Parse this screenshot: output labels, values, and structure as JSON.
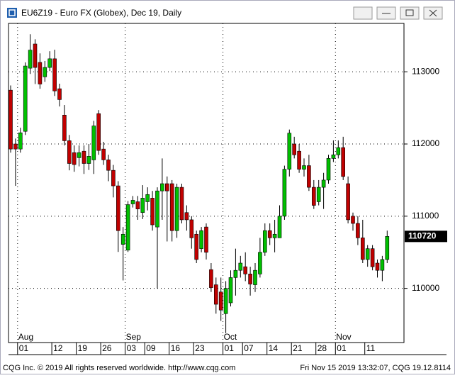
{
  "window_title": "EU6Z19 - Euro FX (Globex), Dec 19, Daily",
  "footer": {
    "left": "CQG Inc. © 2019 All rights reserved worldwide. http://www.cqg.com",
    "right": "Fri Nov 15 2019 13:32:07, CQG 19.12.8114"
  },
  "chart_data": {
    "type": "candlestick",
    "categories": [
      null,
      null,
      "01",
      null,
      null,
      null,
      null,
      null,
      null,
      "12",
      null,
      null,
      null,
      null,
      "19",
      null,
      null,
      null,
      null,
      "26",
      null,
      null,
      null,
      null,
      "03",
      null,
      null,
      null,
      "09",
      null,
      null,
      null,
      null,
      "16",
      null,
      null,
      null,
      null,
      "23",
      null,
      null,
      null,
      null,
      null,
      "01",
      null,
      null,
      null,
      "07",
      null,
      null,
      null,
      null,
      "14",
      null,
      null,
      null,
      null,
      "21",
      null,
      null,
      null,
      null,
      "28",
      null,
      null,
      null,
      "01",
      null,
      null,
      null,
      null,
      null,
      "11",
      null,
      null,
      null,
      null
    ],
    "months": [
      null,
      null,
      "Aug",
      null,
      null,
      null,
      null,
      null,
      null,
      null,
      null,
      null,
      null,
      null,
      null,
      null,
      null,
      null,
      null,
      null,
      null,
      null,
      null,
      null,
      "Sep",
      null,
      null,
      null,
      null,
      null,
      null,
      null,
      null,
      null,
      null,
      null,
      null,
      null,
      null,
      null,
      null,
      null,
      null,
      null,
      "Oct",
      null,
      null,
      null,
      null,
      null,
      null,
      null,
      null,
      null,
      null,
      null,
      null,
      null,
      null,
      null,
      null,
      null,
      null,
      null,
      null,
      null,
      null,
      "Nov",
      null,
      null,
      null,
      null,
      null,
      null,
      null,
      null,
      null,
      null
    ],
    "open": [
      112745,
      112000,
      111930,
      112175,
      113050,
      113385,
      113130,
      112930,
      113060,
      113180,
      112765,
      112400,
      112045,
      111880,
      111810,
      111900,
      111730,
      111780,
      112420,
      111930,
      111780,
      111635,
      111420,
      110610,
      110530,
      111170,
      111200,
      111050,
      111200,
      111250,
      110850,
      111350,
      111450,
      111450,
      110800,
      111400,
      111050,
      110950,
      110750,
      110550,
      110850,
      110260,
      110050,
      109950,
      109650,
      109800,
      110150,
      110250,
      110300,
      110200,
      110050,
      110200,
      110500,
      110800,
      110700,
      110700,
      111000,
      111650,
      112000,
      111900,
      111650,
      111700,
      111400,
      111200,
      111400,
      111500,
      111800,
      111850,
      111950,
      111450,
      111000,
      110900,
      110700,
      110400,
      110550,
      110350,
      110250,
      110400
    ],
    "high": [
      112810,
      112075,
      112225,
      113130,
      113520,
      113450,
      113255,
      113150,
      113285,
      113305,
      112835,
      112540,
      112125,
      111980,
      111980,
      111980,
      112000,
      112320,
      112470,
      112030,
      111850,
      111710,
      111485,
      110850,
      111210,
      111280,
      111280,
      111430,
      111400,
      111350,
      111400,
      111800,
      111550,
      111500,
      111450,
      111450,
      111150,
      111000,
      110800,
      110850,
      110900,
      110350,
      110150,
      110150,
      110100,
      110250,
      110550,
      110450,
      110500,
      110300,
      110350,
      110700,
      110900,
      110900,
      110950,
      111150,
      111700,
      112200,
      112100,
      112000,
      111800,
      111850,
      111500,
      111500,
      111600,
      111850,
      112050,
      112050,
      112100,
      111550,
      111050,
      111000,
      110950,
      110600,
      110600,
      110400,
      110450,
      110800
    ],
    "low": [
      111880,
      111420,
      111880,
      112125,
      112970,
      112830,
      112765,
      112860,
      113010,
      112665,
      112520,
      111980,
      111635,
      111615,
      111690,
      111585,
      111640,
      111585,
      111850,
      111710,
      111485,
      111260,
      110505,
      110110,
      110505,
      111120,
      110950,
      110960,
      111080,
      110800,
      110000,
      110950,
      110650,
      110650,
      110700,
      110900,
      110800,
      110550,
      110350,
      110500,
      110400,
      109950,
      109650,
      109550,
      109380,
      109750,
      109900,
      110150,
      110100,
      109900,
      109950,
      110150,
      110450,
      110600,
      110500,
      110700,
      110950,
      111550,
      111800,
      111600,
      111550,
      111350,
      111100,
      111150,
      111100,
      111450,
      111750,
      111800,
      111500,
      110900,
      110800,
      110600,
      110350,
      110300,
      110250,
      110150,
      110100,
      110350
    ],
    "close": [
      111930,
      111930,
      112155,
      113080,
      113300,
      113060,
      112830,
      113060,
      113180,
      112735,
      112615,
      112045,
      111730,
      111715,
      111880,
      111730,
      111830,
      112250,
      111910,
      111780,
      111635,
      111420,
      110800,
      110750,
      111160,
      111220,
      111100,
      111250,
      111300,
      110880,
      111350,
      111450,
      111350,
      110800,
      111400,
      110950,
      110950,
      110700,
      110400,
      110800,
      110500,
      110010,
      109780,
      109700,
      110000,
      110150,
      110250,
      110350,
      110200,
      110060,
      110250,
      110500,
      110800,
      110700,
      110750,
      111000,
      111650,
      112150,
      111850,
      111650,
      111700,
      111400,
      111150,
      111400,
      111500,
      111800,
      111850,
      111950,
      111550,
      110950,
      110900,
      110700,
      110400,
      110550,
      110300,
      110250,
      110400,
      110720
    ],
    "last_price": 110720,
    "ylim": [
      109250,
      113670
    ],
    "yticks": [
      110000,
      111000,
      112000,
      113000
    ],
    "grid": true,
    "up_color": "#00c000",
    "down_color": "#c00000"
  }
}
